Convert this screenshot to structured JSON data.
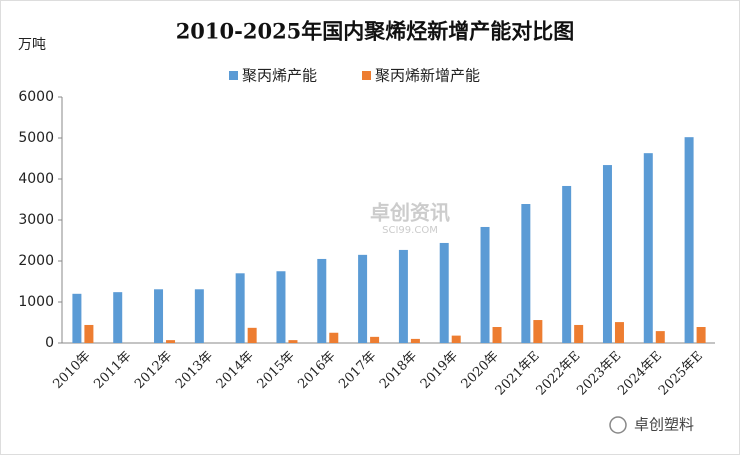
{
  "chart_data": {
    "type": "bar",
    "title": "2010-2025年国内聚烯烃新增产能对比图",
    "y_label": "万吨",
    "categories": [
      "2010年",
      "2011年",
      "2012年",
      "2013年",
      "2014年",
      "2015年",
      "2016年",
      "2017年",
      "2018年",
      "2019年",
      "2020年",
      "2021年E",
      "2022年E",
      "2023年E",
      "2024年E",
      "2025年E"
    ],
    "series": [
      {
        "name": "聚丙烯产能",
        "color": "#5b9bd5",
        "values": [
          1200,
          1240,
          1310,
          1310,
          1700,
          1750,
          2050,
          2150,
          2270,
          2440,
          2830,
          3390,
          3830,
          4340,
          4630,
          5020
        ]
      },
      {
        "name": "聚丙烯新增产能",
        "color": "#ed7d31",
        "values": [
          440,
          0,
          70,
          0,
          370,
          70,
          250,
          150,
          100,
          180,
          390,
          560,
          440,
          510,
          290,
          390
        ]
      }
    ],
    "ylim": [
      0,
      6000
    ],
    "yticks": [
      0,
      1000,
      2000,
      3000,
      4000,
      5000,
      6000
    ],
    "grid": false,
    "watermark": "卓创资讯",
    "watermark_sub": "SCI99.COM",
    "source": "卓创塑料"
  }
}
